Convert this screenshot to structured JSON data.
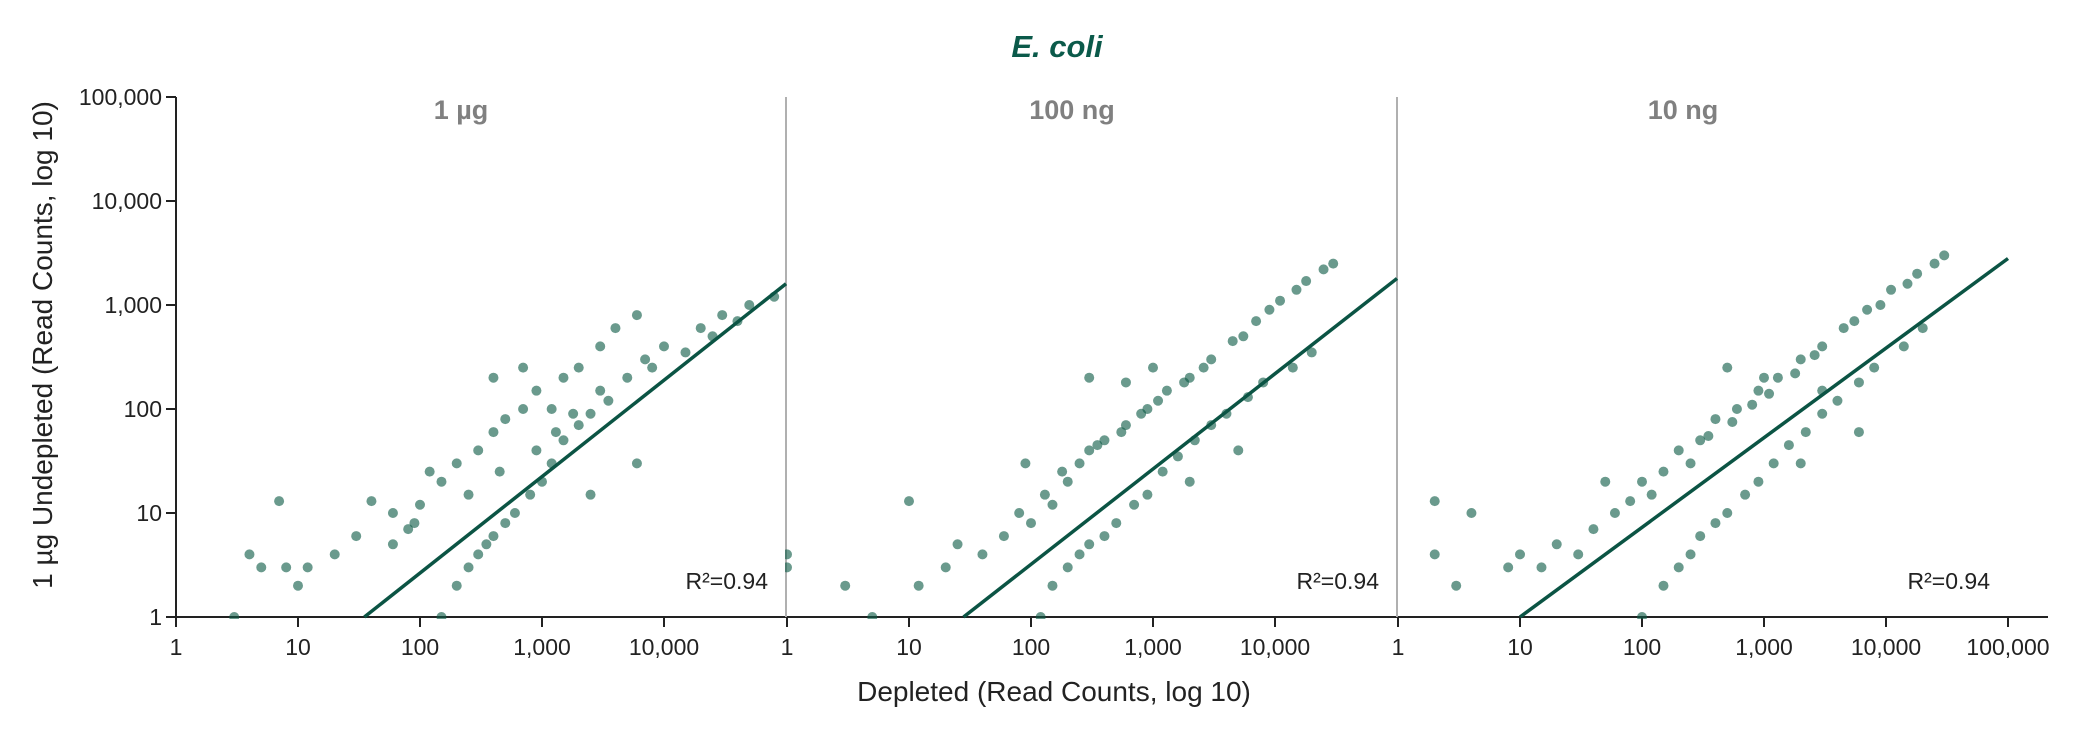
{
  "chart_data": {
    "type": "scatter",
    "title": "E. coli",
    "xlabel": "Depleted (Read Counts, log 10)",
    "ylabel": "1 µg Undepleted (Read Counts, log 10)",
    "x_scale": "log10",
    "y_scale": "log10",
    "ylim": [
      1,
      100000
    ],
    "y_ticks": [
      1,
      10,
      100,
      1000,
      10000,
      100000
    ],
    "y_tick_labels": [
      "1",
      "10",
      "100",
      "1,000",
      "10,000",
      "100,000"
    ],
    "colors": {
      "title": "#0b5a4a",
      "points": "#0e5c47",
      "line": "#0b5444",
      "panel_title": "#808080",
      "axis": "#222222",
      "separator": "#b0b0b0"
    },
    "panels": [
      {
        "label": "1 µg",
        "xlim": [
          1,
          100000
        ],
        "x_ticks": [
          1,
          10,
          100,
          1000,
          10000
        ],
        "x_tick_labels": [
          "1",
          "10",
          "100",
          "1,000",
          "10,000"
        ],
        "annotation": "R²=0.94",
        "fit_line": {
          "x": [
            35,
            100000
          ],
          "y": [
            1,
            1600
          ]
        },
        "points": [
          [
            4,
            4
          ],
          [
            5,
            3
          ],
          [
            7,
            13
          ],
          [
            3,
            1
          ],
          [
            10,
            2
          ],
          [
            8,
            3
          ],
          [
            12,
            3
          ],
          [
            20,
            4
          ],
          [
            30,
            6
          ],
          [
            40,
            13
          ],
          [
            60,
            10
          ],
          [
            90,
            8
          ],
          [
            120,
            25
          ],
          [
            150,
            20
          ],
          [
            200,
            30
          ],
          [
            300,
            40
          ],
          [
            400,
            60
          ],
          [
            500,
            80
          ],
          [
            700,
            100
          ],
          [
            900,
            150
          ],
          [
            1500,
            200
          ],
          [
            2000,
            250
          ],
          [
            3000,
            400
          ],
          [
            4000,
            600
          ],
          [
            6000,
            800
          ],
          [
            150,
            1
          ],
          [
            200,
            2
          ],
          [
            250,
            3
          ],
          [
            300,
            4
          ],
          [
            350,
            5
          ],
          [
            400,
            6
          ],
          [
            500,
            8
          ],
          [
            600,
            10
          ],
          [
            800,
            15
          ],
          [
            1000,
            20
          ],
          [
            1200,
            30
          ],
          [
            1500,
            50
          ],
          [
            2000,
            70
          ],
          [
            2500,
            90
          ],
          [
            3000,
            150
          ],
          [
            5000,
            200
          ],
          [
            7000,
            300
          ],
          [
            10000,
            400
          ],
          [
            20000,
            600
          ],
          [
            30000,
            800
          ],
          [
            50000,
            1000
          ],
          [
            80000,
            1200
          ],
          [
            400,
            200
          ],
          [
            700,
            250
          ],
          [
            1200,
            100
          ],
          [
            6000,
            30
          ],
          [
            2500,
            15
          ],
          [
            100,
            12
          ],
          [
            80,
            7
          ],
          [
            60,
            5
          ],
          [
            250,
            15
          ],
          [
            450,
            25
          ],
          [
            900,
            40
          ],
          [
            1300,
            60
          ],
          [
            1800,
            90
          ],
          [
            3500,
            120
          ],
          [
            8000,
            250
          ],
          [
            15000,
            350
          ],
          [
            25000,
            500
          ],
          [
            40000,
            700
          ]
        ]
      },
      {
        "label": "100 ng",
        "xlim": [
          1,
          100000
        ],
        "x_ticks": [
          1,
          10,
          100,
          1000,
          10000
        ],
        "x_tick_labels": [
          "1",
          "10",
          "100",
          "1,000",
          "10,000"
        ],
        "annotation": "R²=0.94",
        "fit_line": {
          "x": [
            28,
            100000
          ],
          "y": [
            1,
            1800
          ]
        },
        "points": [
          [
            1,
            4
          ],
          [
            1,
            3
          ],
          [
            3,
            2
          ],
          [
            5,
            1
          ],
          [
            10,
            13
          ],
          [
            12,
            2
          ],
          [
            20,
            3
          ],
          [
            25,
            5
          ],
          [
            40,
            4
          ],
          [
            60,
            6
          ],
          [
            80,
            10
          ],
          [
            100,
            8
          ],
          [
            150,
            12
          ],
          [
            200,
            20
          ],
          [
            250,
            30
          ],
          [
            300,
            40
          ],
          [
            400,
            50
          ],
          [
            600,
            70
          ],
          [
            900,
            100
          ],
          [
            1300,
            150
          ],
          [
            2000,
            200
          ],
          [
            3000,
            300
          ],
          [
            4500,
            450
          ],
          [
            7000,
            700
          ],
          [
            11000,
            1100
          ],
          [
            18000,
            1700
          ],
          [
            30000,
            2500
          ],
          [
            120,
            1
          ],
          [
            150,
            2
          ],
          [
            200,
            3
          ],
          [
            250,
            4
          ],
          [
            300,
            5
          ],
          [
            400,
            6
          ],
          [
            500,
            8
          ],
          [
            700,
            12
          ],
          [
            900,
            15
          ],
          [
            1200,
            25
          ],
          [
            1600,
            35
          ],
          [
            2200,
            50
          ],
          [
            3000,
            70
          ],
          [
            4000,
            90
          ],
          [
            6000,
            130
          ],
          [
            8000,
            180
          ],
          [
            14000,
            250
          ],
          [
            20000,
            350
          ],
          [
            300,
            200
          ],
          [
            600,
            180
          ],
          [
            1000,
            250
          ],
          [
            5000,
            40
          ],
          [
            2000,
            20
          ],
          [
            90,
            30
          ],
          [
            130,
            15
          ],
          [
            180,
            25
          ],
          [
            350,
            45
          ],
          [
            550,
            60
          ],
          [
            800,
            90
          ],
          [
            1100,
            120
          ],
          [
            1800,
            180
          ],
          [
            2600,
            250
          ],
          [
            5500,
            500
          ],
          [
            9000,
            900
          ],
          [
            15000,
            1400
          ],
          [
            25000,
            2200
          ]
        ]
      },
      {
        "label": "10 ng",
        "xlim": [
          1,
          100000
        ],
        "x_ticks": [
          1,
          10,
          100,
          1000,
          10000,
          100000
        ],
        "x_tick_labels": [
          "1",
          "10",
          "100",
          "1,000",
          "10,000",
          "100,000"
        ],
        "annotation": "R²=0.94",
        "fit_line": {
          "x": [
            10,
            100000
          ],
          "y": [
            1,
            2800
          ]
        },
        "points": [
          [
            2,
            13
          ],
          [
            4,
            10
          ],
          [
            2,
            4
          ],
          [
            3,
            2
          ],
          [
            8,
            3
          ],
          [
            10,
            4
          ],
          [
            15,
            3
          ],
          [
            20,
            5
          ],
          [
            30,
            4
          ],
          [
            40,
            7
          ],
          [
            60,
            10
          ],
          [
            80,
            13
          ],
          [
            100,
            20
          ],
          [
            150,
            25
          ],
          [
            200,
            40
          ],
          [
            300,
            50
          ],
          [
            400,
            80
          ],
          [
            600,
            100
          ],
          [
            900,
            150
          ],
          [
            1300,
            200
          ],
          [
            2000,
            300
          ],
          [
            3000,
            400
          ],
          [
            4500,
            600
          ],
          [
            7000,
            900
          ],
          [
            11000,
            1400
          ],
          [
            18000,
            2000
          ],
          [
            30000,
            3000
          ],
          [
            100,
            1
          ],
          [
            150,
            2
          ],
          [
            200,
            3
          ],
          [
            250,
            4
          ],
          [
            300,
            6
          ],
          [
            400,
            8
          ],
          [
            500,
            10
          ],
          [
            700,
            15
          ],
          [
            900,
            20
          ],
          [
            1200,
            30
          ],
          [
            1600,
            45
          ],
          [
            2200,
            60
          ],
          [
            3000,
            90
          ],
          [
            4000,
            120
          ],
          [
            6000,
            180
          ],
          [
            8000,
            250
          ],
          [
            14000,
            400
          ],
          [
            20000,
            600
          ],
          [
            500,
            250
          ],
          [
            1000,
            200
          ],
          [
            3000,
            150
          ],
          [
            6000,
            60
          ],
          [
            2000,
            30
          ],
          [
            50,
            20
          ],
          [
            120,
            15
          ],
          [
            250,
            30
          ],
          [
            350,
            55
          ],
          [
            550,
            75
          ],
          [
            800,
            110
          ],
          [
            1100,
            140
          ],
          [
            1800,
            220
          ],
          [
            2600,
            330
          ],
          [
            5500,
            700
          ],
          [
            9000,
            1000
          ],
          [
            15000,
            1600
          ],
          [
            25000,
            2500
          ]
        ]
      }
    ]
  }
}
